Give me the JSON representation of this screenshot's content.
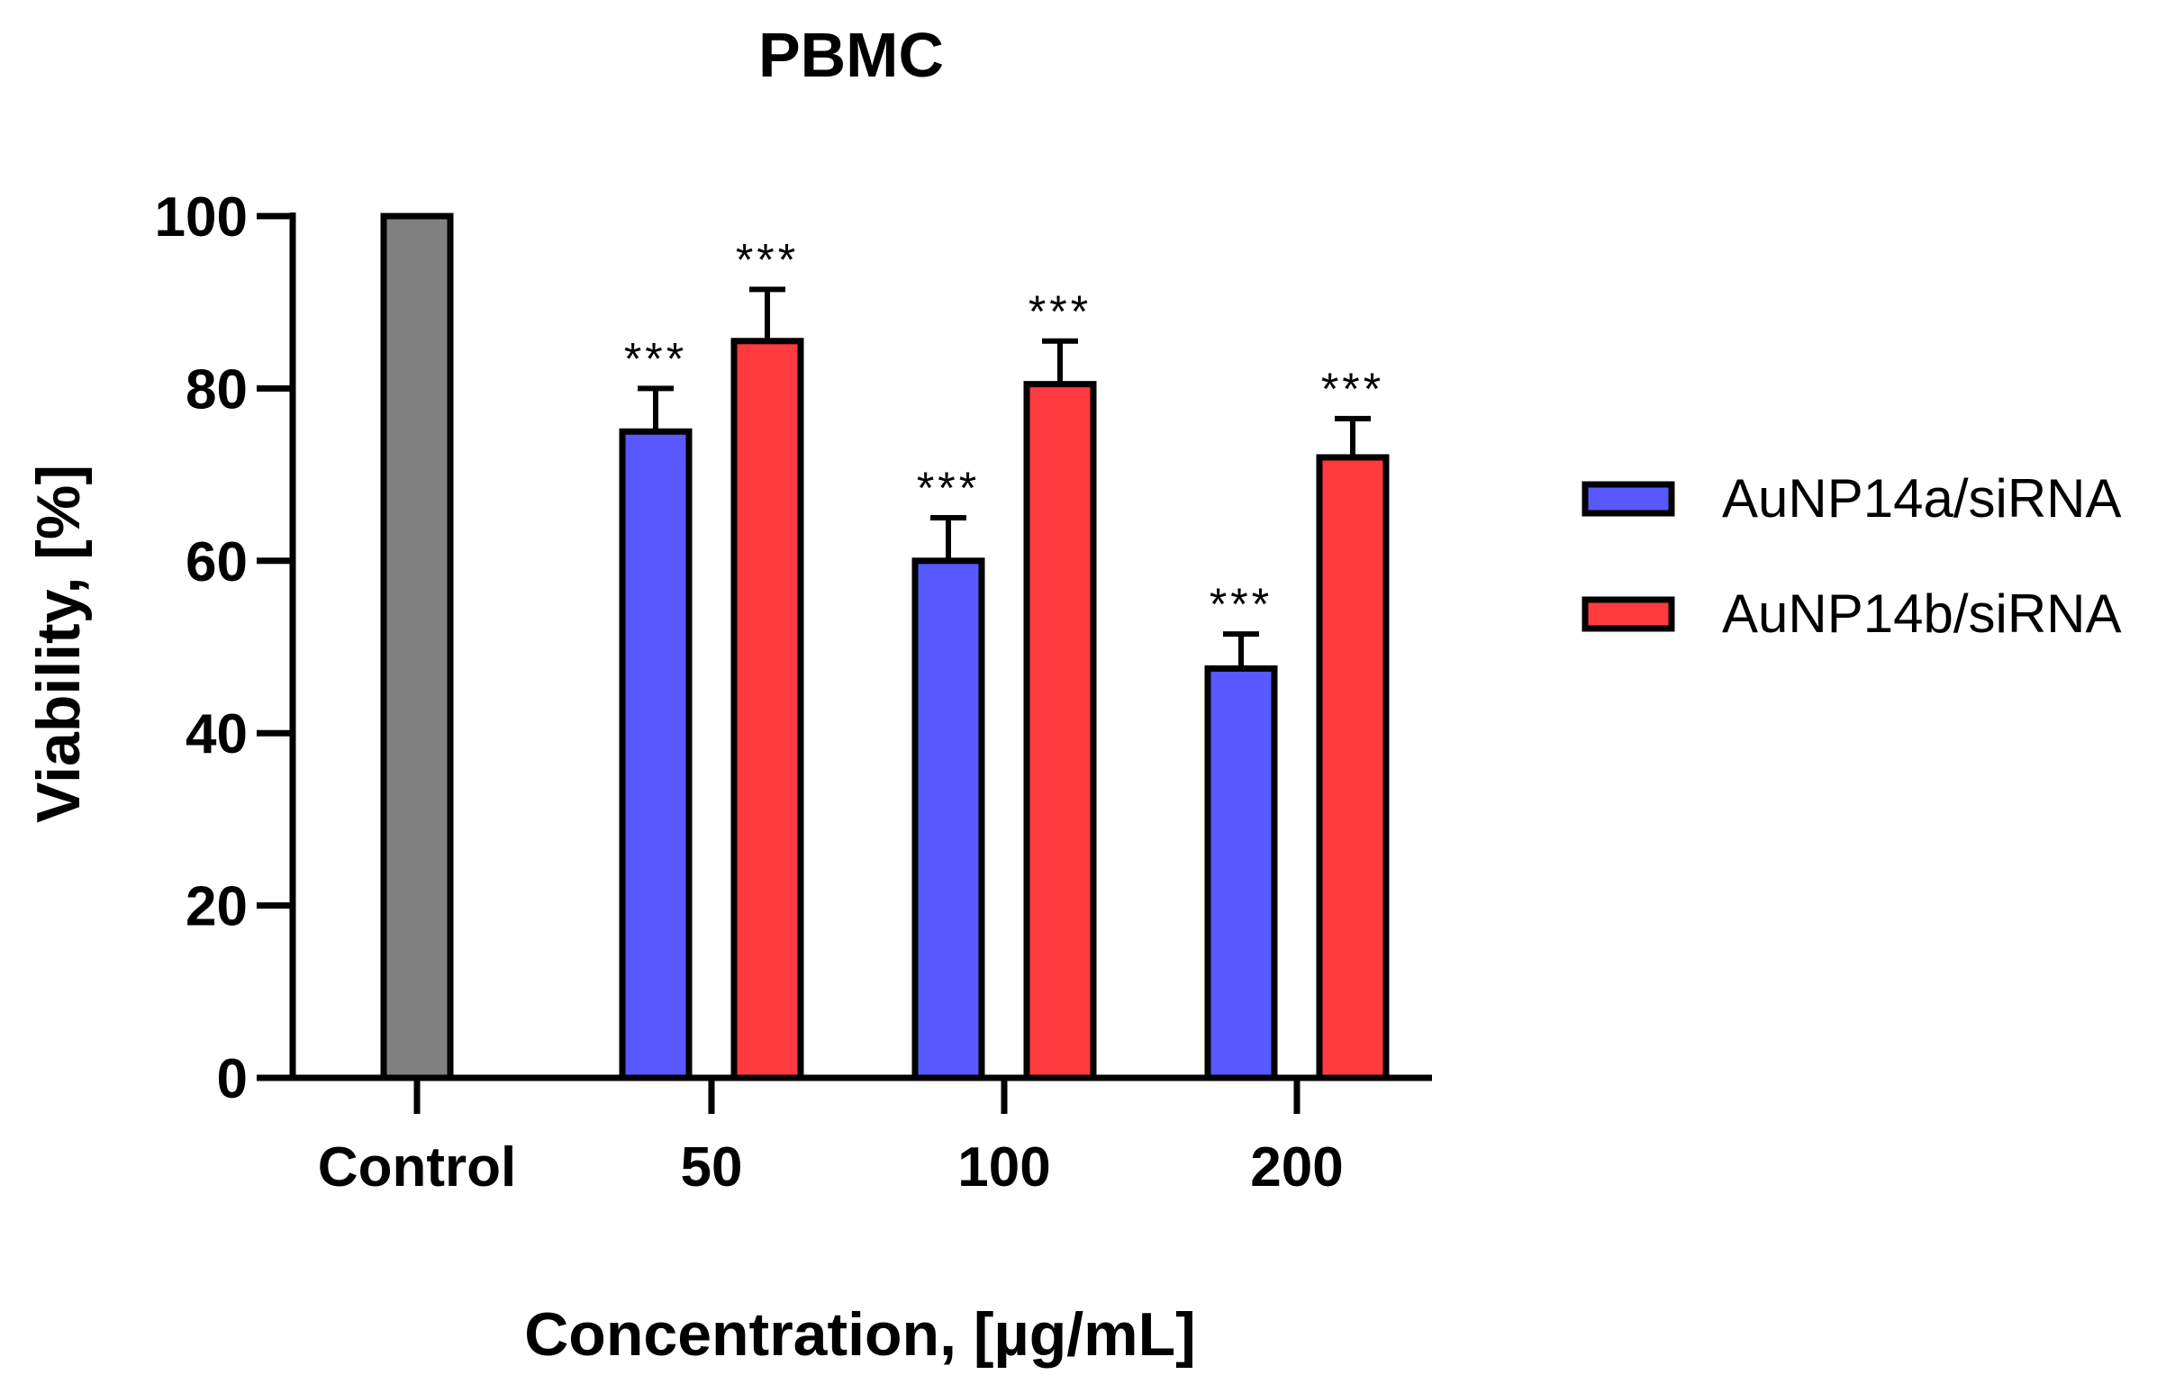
{
  "chart_data": {
    "type": "bar",
    "title": "PBMC",
    "xlabel": "Concentration, [µg/mL]",
    "ylabel": "Viability, [%]",
    "ylim": [
      0,
      100
    ],
    "yticks": [
      0,
      20,
      40,
      60,
      80,
      100
    ],
    "categories": [
      "Control",
      "50",
      "100",
      "200"
    ],
    "control": {
      "name": "Control",
      "value": 100,
      "color": "#808080"
    },
    "series": [
      {
        "name": "AuNP14a/siRNA",
        "color": "#5858FF",
        "values": [
          null,
          75,
          60,
          47.5
        ],
        "errors": [
          null,
          5,
          5,
          4
        ],
        "annotations": [
          null,
          "***",
          "***",
          "***"
        ]
      },
      {
        "name": "AuNP14b/siRNA",
        "color": "#FF3B3F",
        "values": [
          null,
          85.5,
          80.5,
          72
        ],
        "errors": [
          null,
          6,
          5,
          4.5
        ],
        "annotations": [
          null,
          "***",
          "***",
          "***"
        ]
      }
    ],
    "legend_position": "right"
  }
}
